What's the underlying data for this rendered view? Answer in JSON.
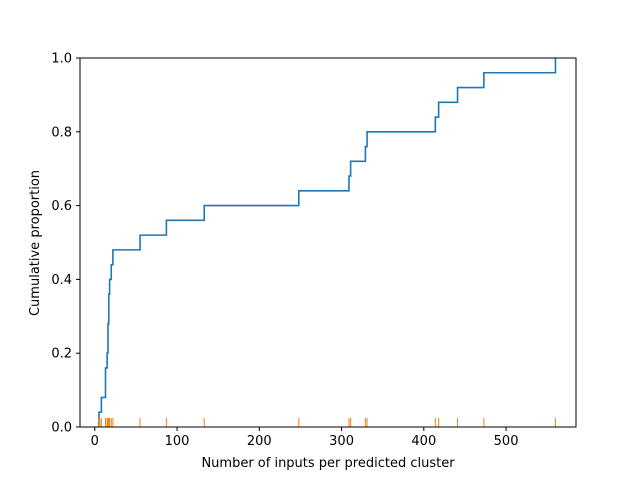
{
  "chart_data": {
    "type": "line",
    "subtype": "ecdf-step-with-rug",
    "title": "",
    "xlabel": "Number of inputs per predicted cluster",
    "ylabel": "Cumulative proportion",
    "xlim": [
      -18,
      585
    ],
    "ylim": [
      0,
      1.0
    ],
    "xticks": [
      0,
      100,
      200,
      300,
      400,
      500
    ],
    "yticks": [
      0.0,
      0.2,
      0.4,
      0.6,
      0.8,
      1.0
    ],
    "xtick_labels": [
      "0",
      "100",
      "200",
      "300",
      "400",
      "500"
    ],
    "ytick_labels": [
      "0.0",
      "0.2",
      "0.4",
      "0.6",
      "0.8",
      "1.0"
    ],
    "grid": false,
    "legend": "none",
    "series": [
      {
        "values": [
          5,
          6,
          8,
          13,
          15,
          16,
          17,
          18,
          20,
          22,
          55,
          87,
          133,
          248,
          309,
          311,
          329,
          331,
          414,
          418,
          441,
          473,
          560
        ],
        "y": [
          0.04,
          0.04,
          0.08,
          0.16,
          0.2,
          0.28,
          0.36,
          0.4,
          0.44,
          0.48,
          0.52,
          0.56,
          0.6,
          0.64,
          0.68,
          0.72,
          0.76,
          0.8,
          0.84,
          0.88,
          0.92,
          0.96,
          1.0
        ],
        "color": "#1f77b4"
      }
    ],
    "rug": {
      "values": [
        5,
        6,
        8,
        13,
        15,
        16,
        17,
        18,
        20,
        22,
        55,
        87,
        133,
        248,
        309,
        311,
        329,
        331,
        414,
        418,
        441,
        473,
        560
      ],
      "color": "#ff7f0e"
    }
  }
}
